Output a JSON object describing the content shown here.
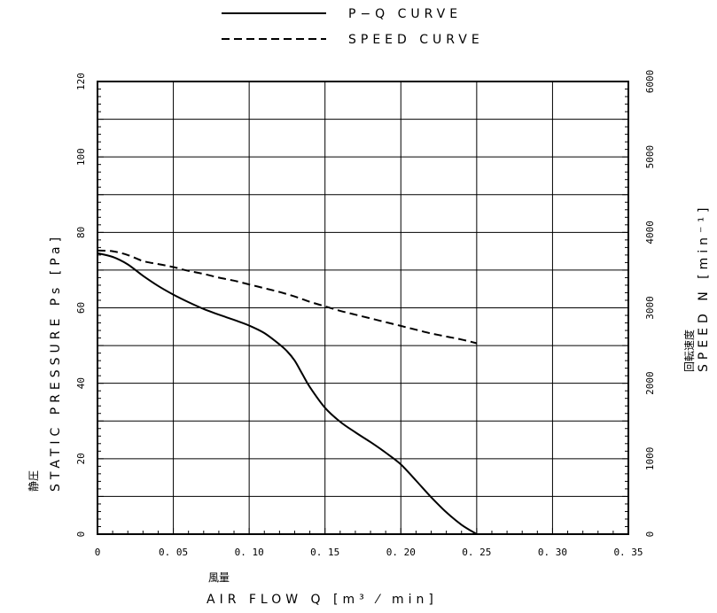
{
  "chart_data": {
    "type": "line",
    "legend": {
      "placement": "top-center",
      "entries": [
        {
          "name": "P−Q CURVE",
          "style": "solid"
        },
        {
          "name": "SPEED CURVE",
          "style": "dashed"
        }
      ]
    },
    "x_axis": {
      "title_ja": "風量",
      "title": "AIR FLOW Q [m³ ⁄ min]",
      "range": [
        0,
        0.35
      ],
      "ticks": [
        0,
        0.05,
        0.1,
        0.15,
        0.2,
        0.25,
        0.3,
        0.35
      ],
      "tick_labels": [
        "0",
        "0. 05",
        "0. 10",
        "0. 15",
        "0. 20",
        "0. 25",
        "0. 30",
        "0. 35"
      ]
    },
    "y_axis_left": {
      "title_ja": "静圧",
      "title": "STATIC PRESSURE Ps [Pa]",
      "range": [
        0,
        120
      ],
      "ticks": [
        0,
        20,
        40,
        60,
        80,
        100,
        120
      ],
      "tick_labels": [
        "0",
        "20",
        "40",
        "60",
        "80",
        "100",
        "120"
      ]
    },
    "y_axis_right": {
      "title_ja": "回転速度",
      "title": "SPEED N [min⁻¹]",
      "range": [
        0,
        6000
      ],
      "ticks": [
        0,
        1000,
        2000,
        3000,
        4000,
        5000,
        6000
      ],
      "tick_labels": [
        "0",
        "1000",
        "2000",
        "3000",
        "4000",
        "5000",
        "6000"
      ]
    },
    "grid": true,
    "series": [
      {
        "name": "P−Q CURVE",
        "axis": "left",
        "style": "solid",
        "x": [
          0,
          0.01,
          0.02,
          0.03,
          0.04,
          0.05,
          0.06,
          0.07,
          0.08,
          0.09,
          0.1,
          0.11,
          0.12,
          0.125,
          0.13,
          0.135,
          0.14,
          0.15,
          0.16,
          0.17,
          0.18,
          0.19,
          0.2,
          0.21,
          0.22,
          0.23,
          0.24,
          0.25
        ],
        "y": [
          74.5,
          73.5,
          71.5,
          68.5,
          65.8,
          63.5,
          61.5,
          59.7,
          58.2,
          56.8,
          55.3,
          53.3,
          50.3,
          48.5,
          46,
          42.5,
          39,
          33.5,
          29.8,
          27,
          24.4,
          21.6,
          18.5,
          14.2,
          9.8,
          5.8,
          2.5,
          0
        ]
      },
      {
        "name": "SPEED CURVE",
        "axis": "right",
        "style": "dashed",
        "x": [
          0,
          0.01,
          0.02,
          0.03,
          0.04,
          0.05,
          0.06,
          0.07,
          0.08,
          0.09,
          0.1,
          0.11,
          0.12,
          0.13,
          0.14,
          0.15,
          0.16,
          0.17,
          0.18,
          0.19,
          0.2,
          0.21,
          0.22,
          0.23,
          0.24,
          0.25
        ],
        "y": [
          3760,
          3750,
          3700,
          3620,
          3580,
          3540,
          3490,
          3450,
          3400,
          3360,
          3310,
          3260,
          3210,
          3150,
          3080,
          3020,
          2960,
          2910,
          2860,
          2810,
          2760,
          2710,
          2660,
          2620,
          2580,
          2530
        ]
      }
    ]
  }
}
